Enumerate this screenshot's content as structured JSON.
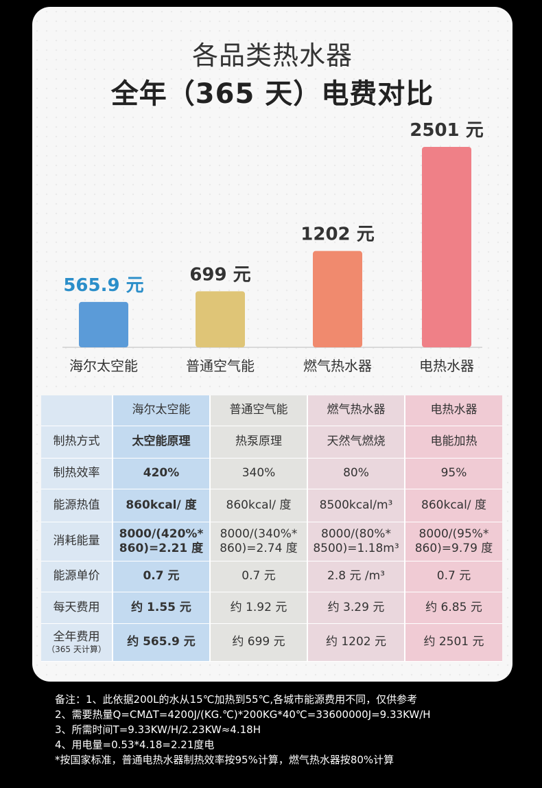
{
  "title_line1": "各品类热水器",
  "title_line2": "全年（365 天）电费对比",
  "chart_data": {
    "type": "bar",
    "categories": [
      "海尔太空能",
      "普通空气能",
      "燃气热水器",
      "电热水器"
    ],
    "values": [
      565.9,
      699,
      1202,
      2501
    ],
    "value_labels": [
      "565.9 元",
      "699 元",
      "1202 元",
      "2501 元"
    ],
    "colors": [
      "#5b9bd8",
      "#dfc577",
      "#f08a6e",
      "#ef8087"
    ],
    "label_colors": [
      "#2b8ec9",
      "#333333",
      "#333333",
      "#333333"
    ],
    "ylim": [
      0,
      2501
    ]
  },
  "table": {
    "header": [
      "",
      "海尔太空能",
      "普通空气能",
      "燃气热水器",
      "电热水器"
    ],
    "rows": [
      {
        "label": "制热方式",
        "cells": [
          "太空能原理",
          "热泵原理",
          "天然气燃烧",
          "电能加热"
        ]
      },
      {
        "label": "制热效率",
        "cells": [
          "420%",
          "340%",
          "80%",
          "95%"
        ]
      },
      {
        "label": "能源热值",
        "cells": [
          "860kcal/ 度",
          "860kcal/ 度",
          "8500kcal/m³",
          "860kcal/ 度"
        ]
      },
      {
        "label": "消耗能量",
        "cells": [
          "8000/(420%*\n860)=2.21 度",
          "8000/(340%*\n860)=2.74 度",
          "8000/(80%*\n8500)=1.18m³",
          "8000/(95%*\n860)=9.79 度"
        ]
      },
      {
        "label": "能源单价",
        "cells": [
          "0.7 元",
          "0.7 元",
          "2.8 元 /m³",
          "0.7 元"
        ]
      },
      {
        "label": "每天费用",
        "cells": [
          "约 1.55 元",
          "约 1.92 元",
          "约 3.29 元",
          "约 6.85 元"
        ]
      },
      {
        "label": "全年费用",
        "sublabel": "（365 天计算）",
        "cells": [
          "约 565.9 元",
          "约 699 元",
          "约 1202 元",
          "约 2501 元"
        ]
      }
    ]
  },
  "notes": [
    "备注：1、此依据200L的水从15℃加热到55℃,各城市能源费用不同，仅供参考",
    "2、需要热量Q=CMΔT=4200J/(KG.℃)*200KG*40℃=33600000J=9.33KW/H",
    "3、所需时间T=9.33KW/H/2.23KW≈4.18H",
    "4、用电量=0.53*4.18=2.21度电",
    "*按国家标准，普通电热水器制热效率按95%计算，燃气热水器按80%计算"
  ]
}
